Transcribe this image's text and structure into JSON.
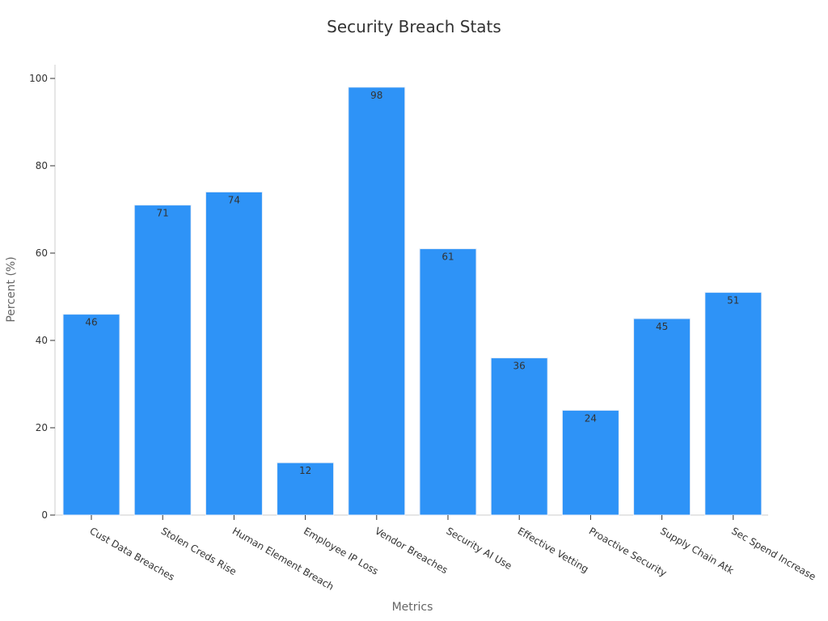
{
  "chart_data": {
    "type": "bar",
    "title": "Security Breach Stats",
    "xlabel": "Metrics",
    "ylabel": "Percent (%)",
    "categories": [
      "Cust Data Breaches",
      "Stolen Creds Rise",
      "Human Element Breach",
      "Employee IP Loss",
      "Vendor Breaches",
      "Security AI Use",
      "Effective Vetting",
      "Proactive Security",
      "Supply Chain Atk",
      "Sec Spend Increase"
    ],
    "values": [
      46,
      71,
      74,
      12,
      98,
      61,
      36,
      24,
      45,
      51
    ],
    "ylim": [
      0,
      100
    ],
    "yticks": [
      0,
      20,
      40,
      60,
      80,
      100
    ],
    "grid": false,
    "bar_color": "#2e93f7",
    "data_labels": true
  }
}
